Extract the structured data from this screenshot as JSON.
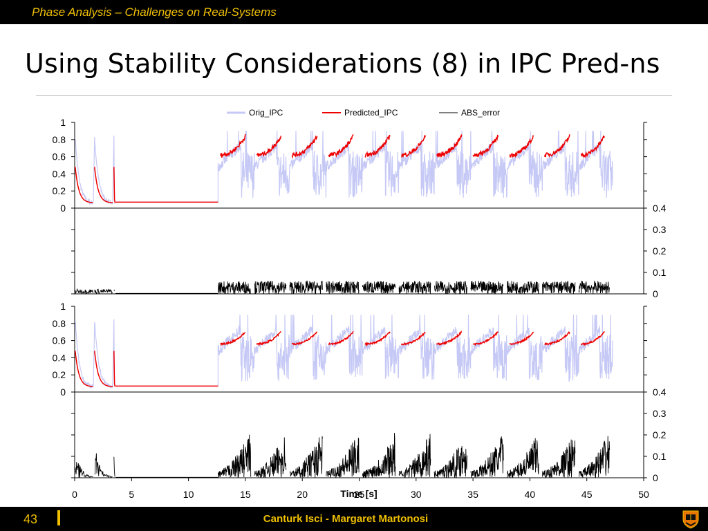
{
  "header": {
    "title": "Phase Analysis – Challenges on Real-Systems"
  },
  "slide": {
    "title": "Using Stability Considerations (8) in IPC Pred-ns"
  },
  "footer": {
    "slide_number": "43",
    "authors": "Canturk Isci - Margaret Martonosi"
  },
  "colors": {
    "orig": "#c6c9f5",
    "pred": "#ee0000",
    "error": "#000000",
    "accent": "#f0c000"
  },
  "chart_data": {
    "type": "line",
    "legend": [
      "Orig_IPC",
      "Predicted_IPC",
      "ABS_error"
    ],
    "legend_placement": "top",
    "xlabel": "Time [s]",
    "x_ticks": [
      "0",
      "5",
      "10",
      "15",
      "20",
      "25",
      "30",
      "35",
      "40",
      "45",
      "50"
    ],
    "xlim": [
      0,
      50
    ],
    "ipc_ticks": [
      "0",
      "0.2",
      "0.4",
      "0.6",
      "0.8",
      "1"
    ],
    "ipc_ylim": [
      0,
      1
    ],
    "err_ticks": [
      "0",
      "0.1",
      "0.2",
      "0.3",
      "0.4"
    ],
    "err_ylim": [
      0,
      0.4
    ],
    "start_phase_boundaries": [
      0,
      1.7,
      3.4
    ],
    "idle_phase": {
      "start": 3.6,
      "end": 12.6,
      "ipc": 0.07
    },
    "periods": [
      12.6,
      15.8,
      18.9,
      22.1,
      25.3,
      28.5,
      31.6,
      34.8,
      38.0,
      41.1,
      44.3,
      47.3
    ],
    "orig_ipc_range": [
      0.05,
      0.9
    ],
    "panels": [
      {
        "predicted_ipc_start": 0.62,
        "predicted_ipc_end": 0.84,
        "error_peak": 0.06
      },
      {
        "predicted_ipc_start": 0.56,
        "predicted_ipc_end": 0.7,
        "error_peak": 0.22
      }
    ]
  }
}
